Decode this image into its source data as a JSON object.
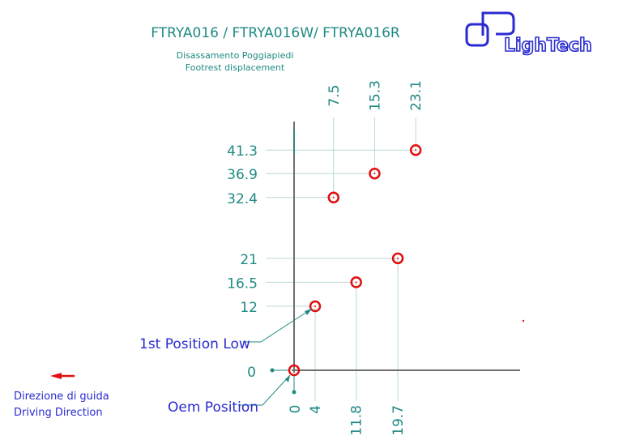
{
  "title": "FTRYA016 / FTRYA016W/ FTRYA016R",
  "subtitle_it": "Disassamento Poggiapiedi",
  "subtitle_en": "Footrest displacement",
  "logo_text": "LighTech",
  "annotations": {
    "first_position": "1st Position Low",
    "oem_position": "Oem Position"
  },
  "direction": {
    "it": "Direzione di guida",
    "en": "Driving Direction",
    "icon": "arrow-left-icon"
  },
  "colors": {
    "teal": "#1f8a84",
    "blue": "#2a2ad0",
    "marker": "#e01010",
    "axis": "#707070"
  },
  "chart_data": {
    "type": "scatter",
    "origin_labels": {
      "x": "0",
      "y": "0"
    },
    "points": [
      {
        "x": 4,
        "y": 12,
        "x_label": "4",
        "y_label": "12"
      },
      {
        "x": 11.8,
        "y": 16.5,
        "x_label": "11.8",
        "y_label": "16.5"
      },
      {
        "x": 19.7,
        "y": 21,
        "x_label": "19.7",
        "y_label": "21"
      },
      {
        "x": 7.5,
        "y": 32.4,
        "x_label": "7.5",
        "y_label": "32.4"
      },
      {
        "x": 15.3,
        "y": 36.9,
        "x_label": "15.3",
        "y_label": "36.9"
      },
      {
        "x": 23.1,
        "y": 41.3,
        "x_label": "23.1",
        "y_label": "41.3"
      }
    ]
  }
}
